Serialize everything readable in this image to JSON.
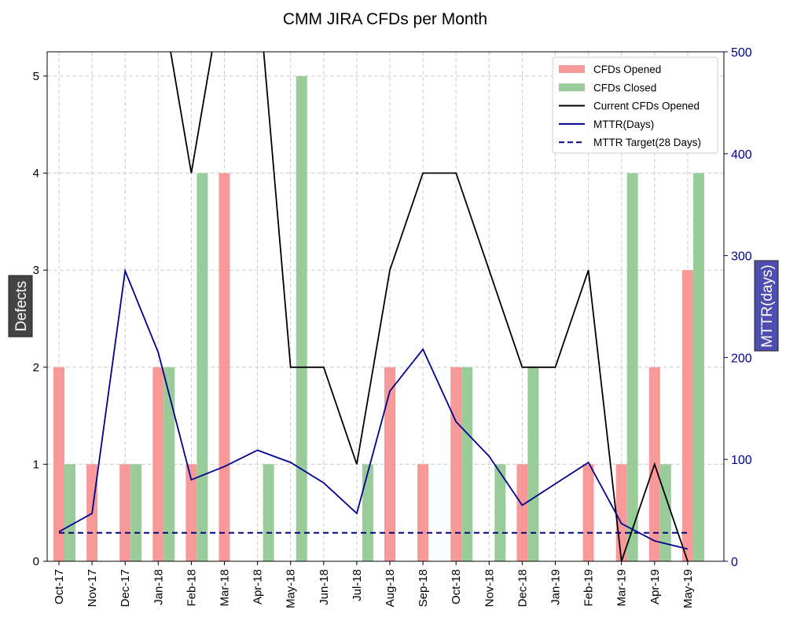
{
  "chart_data": {
    "type": "bar",
    "title": "CMM JIRA CFDs per Month",
    "categories": [
      "Oct-17",
      "Nov-17",
      "Dec-17",
      "Jan-18",
      "Feb-18",
      "Mar-18",
      "Apr-18",
      "May-18",
      "Jun-18",
      "Jul-18",
      "Aug-18",
      "Sep-18",
      "Oct-18",
      "Nov-18",
      "Dec-18",
      "Jan-19",
      "Feb-19",
      "Mar-19",
      "Apr-19",
      "May-19"
    ],
    "ylabel_left": "Defects",
    "ylabel_right": "MTTR(days)",
    "ylim_left": [
      0,
      5.25
    ],
    "ylim_right": [
      0,
      500
    ],
    "yticks_left": [
      "0",
      "1",
      "2",
      "3",
      "4",
      "5"
    ],
    "yticks_right": [
      "0",
      "100",
      "200",
      "300",
      "400",
      "500"
    ],
    "grid": true,
    "legend_position": "top-right",
    "series": [
      {
        "name": "CFDs Opened",
        "kind": "bar",
        "axis": "left",
        "color": "#f89999",
        "values": [
          2,
          1,
          1,
          2,
          1,
          4,
          0,
          0,
          0,
          0,
          2,
          1,
          2,
          0,
          1,
          0,
          1,
          1,
          2,
          3
        ]
      },
      {
        "name": "CFDs Closed",
        "kind": "bar",
        "axis": "left",
        "color": "#99cc99",
        "values": [
          1,
          0,
          1,
          2,
          4,
          0,
          1,
          5,
          0,
          1,
          0,
          0,
          2,
          1,
          2,
          0,
          0,
          4,
          1,
          4
        ]
      },
      {
        "name": "Current CFDs Opened",
        "kind": "line",
        "axis": "left",
        "color": "#000000",
        "values": [
          null,
          null,
          null,
          6,
          4,
          6,
          6,
          2,
          2,
          1,
          3,
          4,
          4,
          3,
          2,
          2,
          3,
          0,
          1,
          0
        ]
      },
      {
        "name": "MTTR(Days)",
        "kind": "line",
        "axis": "right",
        "color": "#00008b",
        "values": [
          29,
          47,
          285,
          205,
          80,
          93,
          109,
          97,
          77,
          47,
          167,
          208,
          137,
          103,
          55,
          76,
          97,
          37,
          20,
          12
        ]
      },
      {
        "name": "MTTR Target(28 Days)",
        "kind": "dashed-line",
        "axis": "right",
        "color": "#00008b",
        "values": [
          28,
          28,
          28,
          28,
          28,
          28,
          28,
          28,
          28,
          28,
          28,
          28,
          28,
          28,
          28,
          28,
          28,
          28,
          28,
          28
        ]
      }
    ]
  }
}
